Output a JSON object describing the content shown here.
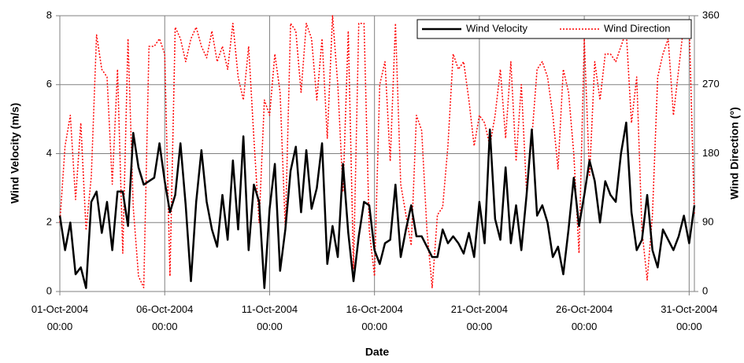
{
  "chart_data": {
    "type": "line",
    "x_label": "Date",
    "y_label": "Wind Velocity (m/s)",
    "y2_label": "Wind Direction (°)",
    "x": [
      "2004-10-01 00:00",
      "2004-10-01 06:00",
      "2004-10-01 12:00",
      "2004-10-01 18:00",
      "2004-10-02 00:00",
      "2004-10-02 06:00",
      "2004-10-02 12:00",
      "2004-10-02 18:00",
      "2004-10-03 00:00",
      "2004-10-03 06:00",
      "2004-10-03 12:00",
      "2004-10-03 18:00",
      "2004-10-04 00:00",
      "2004-10-04 06:00",
      "2004-10-04 12:00",
      "2004-10-04 18:00",
      "2004-10-05 00:00",
      "2004-10-05 06:00",
      "2004-10-05 12:00",
      "2004-10-05 18:00",
      "2004-10-06 00:00",
      "2004-10-06 06:00",
      "2004-10-06 12:00",
      "2004-10-06 18:00",
      "2004-10-07 00:00",
      "2004-10-07 06:00",
      "2004-10-07 12:00",
      "2004-10-07 18:00",
      "2004-10-08 00:00",
      "2004-10-08 06:00",
      "2004-10-08 12:00",
      "2004-10-08 18:00",
      "2004-10-09 00:00",
      "2004-10-09 06:00",
      "2004-10-09 12:00",
      "2004-10-09 18:00",
      "2004-10-10 00:00",
      "2004-10-10 06:00",
      "2004-10-10 12:00",
      "2004-10-10 18:00",
      "2004-10-11 00:00",
      "2004-10-11 06:00",
      "2004-10-11 12:00",
      "2004-10-11 18:00",
      "2004-10-12 00:00",
      "2004-10-12 06:00",
      "2004-10-12 12:00",
      "2004-10-12 18:00",
      "2004-10-13 00:00",
      "2004-10-13 06:00",
      "2004-10-13 12:00",
      "2004-10-13 18:00",
      "2004-10-14 00:00",
      "2004-10-14 06:00",
      "2004-10-14 12:00",
      "2004-10-14 18:00",
      "2004-10-15 00:00",
      "2004-10-15 06:00",
      "2004-10-15 12:00",
      "2004-10-15 18:00",
      "2004-10-16 00:00",
      "2004-10-16 06:00",
      "2004-10-16 12:00",
      "2004-10-16 18:00",
      "2004-10-17 00:00",
      "2004-10-17 06:00",
      "2004-10-17 12:00",
      "2004-10-17 18:00",
      "2004-10-18 00:00",
      "2004-10-18 06:00",
      "2004-10-18 12:00",
      "2004-10-18 18:00",
      "2004-10-19 00:00",
      "2004-10-19 06:00",
      "2004-10-19 12:00",
      "2004-10-19 18:00",
      "2004-10-20 00:00",
      "2004-10-20 06:00",
      "2004-10-20 12:00",
      "2004-10-20 18:00",
      "2004-10-21 00:00",
      "2004-10-21 06:00",
      "2004-10-21 12:00",
      "2004-10-21 18:00",
      "2004-10-22 00:00",
      "2004-10-22 06:00",
      "2004-10-22 12:00",
      "2004-10-22 18:00",
      "2004-10-23 00:00",
      "2004-10-23 06:00",
      "2004-10-23 12:00",
      "2004-10-23 18:00",
      "2004-10-24 00:00",
      "2004-10-24 06:00",
      "2004-10-24 12:00",
      "2004-10-24 18:00",
      "2004-10-25 00:00",
      "2004-10-25 06:00",
      "2004-10-25 12:00",
      "2004-10-25 18:00",
      "2004-10-26 00:00",
      "2004-10-26 06:00",
      "2004-10-26 12:00",
      "2004-10-26 18:00",
      "2004-10-27 00:00",
      "2004-10-27 06:00",
      "2004-10-27 12:00",
      "2004-10-27 18:00",
      "2004-10-28 00:00",
      "2004-10-28 06:00",
      "2004-10-28 12:00",
      "2004-10-28 18:00",
      "2004-10-29 00:00",
      "2004-10-29 06:00",
      "2004-10-29 12:00",
      "2004-10-29 18:00",
      "2004-10-30 00:00",
      "2004-10-30 06:00",
      "2004-10-30 12:00",
      "2004-10-30 18:00",
      "2004-10-31 00:00",
      "2004-10-31 06:00"
    ],
    "series": [
      {
        "name": "Wind Velocity",
        "color": "#000000",
        "values": [
          2.2,
          1.2,
          2.0,
          0.5,
          0.7,
          0.1,
          2.6,
          2.9,
          1.7,
          2.6,
          1.2,
          2.9,
          2.9,
          1.9,
          4.6,
          3.6,
          3.1,
          3.2,
          3.3,
          4.3,
          3.2,
          2.3,
          2.8,
          4.3,
          2.5,
          0.3,
          2.6,
          4.1,
          2.6,
          1.8,
          1.3,
          2.8,
          1.5,
          3.8,
          1.8,
          4.5,
          1.2,
          3.1,
          2.6,
          0.1,
          2.4,
          3.7,
          0.6,
          1.8,
          3.5,
          4.2,
          2.3,
          4.1,
          2.4,
          3.0,
          4.3,
          0.8,
          1.9,
          1.0,
          3.7,
          1.7,
          0.3,
          1.6,
          2.6,
          2.5,
          1.2,
          0.8,
          1.4,
          1.5,
          3.1,
          1.0,
          1.8,
          2.5,
          1.6,
          1.6,
          1.3,
          1.0,
          1.0,
          1.8,
          1.4,
          1.6,
          1.4,
          1.1,
          1.7,
          1.0,
          2.6,
          1.4,
          4.7,
          2.1,
          1.5,
          3.6,
          1.4,
          2.5,
          1.2,
          2.8,
          4.7,
          2.2,
          2.5,
          2.0,
          1.0,
          1.3,
          0.5,
          1.8,
          3.3,
          1.9,
          2.8,
          3.8,
          3.2,
          2.0,
          3.2,
          2.8,
          2.6,
          4.0,
          4.9,
          2.3,
          1.2,
          1.5,
          2.8,
          1.2,
          0.7,
          1.8,
          1.5,
          1.2,
          1.6,
          2.2,
          1.4,
          2.5
        ]
      },
      {
        "name": "Wind Direction",
        "color": "#ff0000",
        "axis": "y2",
        "values": [
          90,
          190,
          230,
          120,
          220,
          80,
          150,
          335,
          290,
          280,
          140,
          290,
          50,
          330,
          110,
          20,
          5,
          320,
          320,
          330,
          310,
          20,
          345,
          330,
          300,
          330,
          345,
          320,
          305,
          340,
          300,
          320,
          290,
          350,
          280,
          250,
          320,
          200,
          90,
          250,
          230,
          310,
          260,
          80,
          350,
          340,
          260,
          350,
          330,
          250,
          330,
          200,
          360,
          270,
          130,
          340,
          30,
          350,
          350,
          80,
          20,
          270,
          300,
          170,
          350,
          140,
          100,
          60,
          230,
          210,
          80,
          5,
          100,
          110,
          190,
          310,
          290,
          300,
          250,
          190,
          230,
          220,
          190,
          230,
          290,
          200,
          300,
          170,
          270,
          130,
          200,
          290,
          300,
          280,
          230,
          160,
          290,
          260,
          180,
          50,
          330,
          150,
          300,
          250,
          310,
          310,
          300,
          320,
          340,
          220,
          280,
          80,
          15,
          100,
          280,
          310,
          330,
          230,
          290,
          350,
          350,
          100
        ]
      }
    ],
    "xlim": [
      "2004-10-01 00:00",
      "2004-10-31 06:00"
    ],
    "xticks": [
      {
        "value": "2004-10-01 00:00",
        "label": [
          "01-Oct-2004",
          "00:00"
        ]
      },
      {
        "value": "2004-10-06 00:00",
        "label": [
          "06-Oct-2004",
          "00:00"
        ]
      },
      {
        "value": "2004-10-11 00:00",
        "label": [
          "11-Oct-2004",
          "00:00"
        ]
      },
      {
        "value": "2004-10-16 00:00",
        "label": [
          "16-Oct-2004",
          "00:00"
        ]
      },
      {
        "value": "2004-10-21 00:00",
        "label": [
          "21-Oct-2004",
          "00:00"
        ]
      },
      {
        "value": "2004-10-26 00:00",
        "label": [
          "26-Oct-2004",
          "00:00"
        ]
      },
      {
        "value": "2004-10-31 00:00",
        "label": [
          "31-Oct-2004",
          "00:00"
        ]
      }
    ],
    "ylim": [
      0,
      8
    ],
    "yticks": [
      0,
      2,
      4,
      6,
      8
    ],
    "y2lim": [
      0,
      360
    ],
    "y2ticks": [
      0,
      90,
      180,
      270,
      360
    ],
    "grid": true,
    "legend": "top-right"
  }
}
